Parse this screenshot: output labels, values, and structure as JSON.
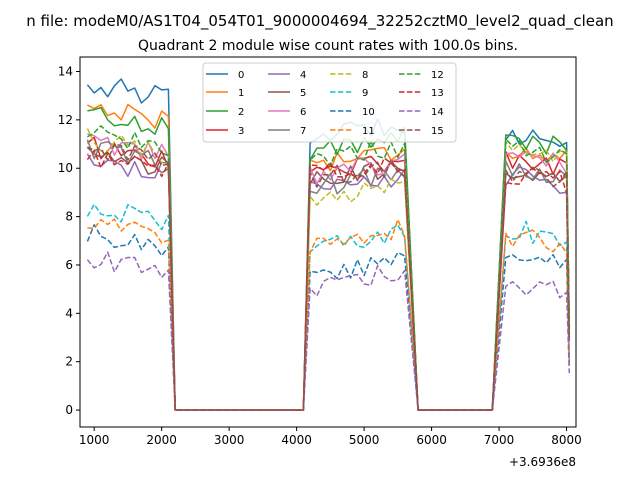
{
  "figure": {
    "suptitle": "n file: modeM0/AS1T04_054T01_9000004694_32252cztM0_level2_quad_clean",
    "offset_label": "+3.6936e8"
  },
  "chart_data": {
    "type": "line",
    "title": "Quadrant 2 module wise count rates with 100.0s bins.",
    "xlabel": "",
    "ylabel": "",
    "xlim": [
      790,
      8140
    ],
    "ylim": [
      -0.7,
      14.6
    ],
    "xticks": [
      1000,
      2000,
      3000,
      4000,
      5000,
      6000,
      7000,
      8000
    ],
    "yticks": [
      0,
      2,
      4,
      6,
      8,
      10,
      12,
      14
    ],
    "grid": false,
    "legend_position": "top-center",
    "legend_columns": 4,
    "segments": [
      {
        "start": 900,
        "end": 2100
      },
      {
        "start": 4200,
        "end": 5600
      },
      {
        "start": 7100,
        "end": 8000
      }
    ],
    "gap_ranges": [
      [
        2200,
        4100
      ],
      [
        5800,
        6900
      ]
    ],
    "series": [
      {
        "name": "0",
        "color": "#1f77b4",
        "dash": "solid",
        "levels": [
          13.2,
          11.6,
          11.3
        ]
      },
      {
        "name": "1",
        "color": "#ff7f0e",
        "dash": "solid",
        "levels": [
          12.3,
          10.5,
          10.6
        ]
      },
      {
        "name": "2",
        "color": "#2ca02c",
        "dash": "solid",
        "levels": [
          12.0,
          11.0,
          11.1
        ]
      },
      {
        "name": "3",
        "color": "#d62728",
        "dash": "solid",
        "levels": [
          10.6,
          10.1,
          10.2
        ]
      },
      {
        "name": "4",
        "color": "#9467bd",
        "dash": "solid",
        "levels": [
          10.1,
          9.3,
          9.5
        ]
      },
      {
        "name": "5",
        "color": "#8c564b",
        "dash": "solid",
        "levels": [
          10.3,
          9.7,
          9.8
        ]
      },
      {
        "name": "6",
        "color": "#e377c2",
        "dash": "solid",
        "levels": [
          10.8,
          10.0,
          10.4
        ]
      },
      {
        "name": "7",
        "color": "#7f7f7f",
        "dash": "solid",
        "levels": [
          10.5,
          9.5,
          9.9
        ]
      },
      {
        "name": "8",
        "color": "#bcbd22",
        "dash": "dashed",
        "levels": [
          10.9,
          8.9,
          10.5
        ]
      },
      {
        "name": "9",
        "color": "#17becf",
        "dash": "dashed",
        "levels": [
          8.1,
          7.1,
          7.3
        ]
      },
      {
        "name": "10",
        "color": "#1f77b4",
        "dash": "dashed",
        "levels": [
          7.0,
          5.9,
          6.2
        ]
      },
      {
        "name": "11",
        "color": "#ff7f0e",
        "dash": "dashed",
        "levels": [
          7.5,
          7.2,
          7.0
        ]
      },
      {
        "name": "12",
        "color": "#2ca02c",
        "dash": "dashed",
        "levels": [
          11.2,
          10.6,
          10.7
        ]
      },
      {
        "name": "13",
        "color": "#d62728",
        "dash": "dashed",
        "levels": [
          10.2,
          10.0,
          9.6
        ]
      },
      {
        "name": "14",
        "color": "#9467bd",
        "dash": "dashed",
        "levels": [
          6.0,
          5.4,
          5.1
        ]
      },
      {
        "name": "15",
        "color": "#8c564b",
        "dash": "dashed",
        "levels": [
          10.6,
          9.8,
          9.7
        ]
      }
    ]
  }
}
